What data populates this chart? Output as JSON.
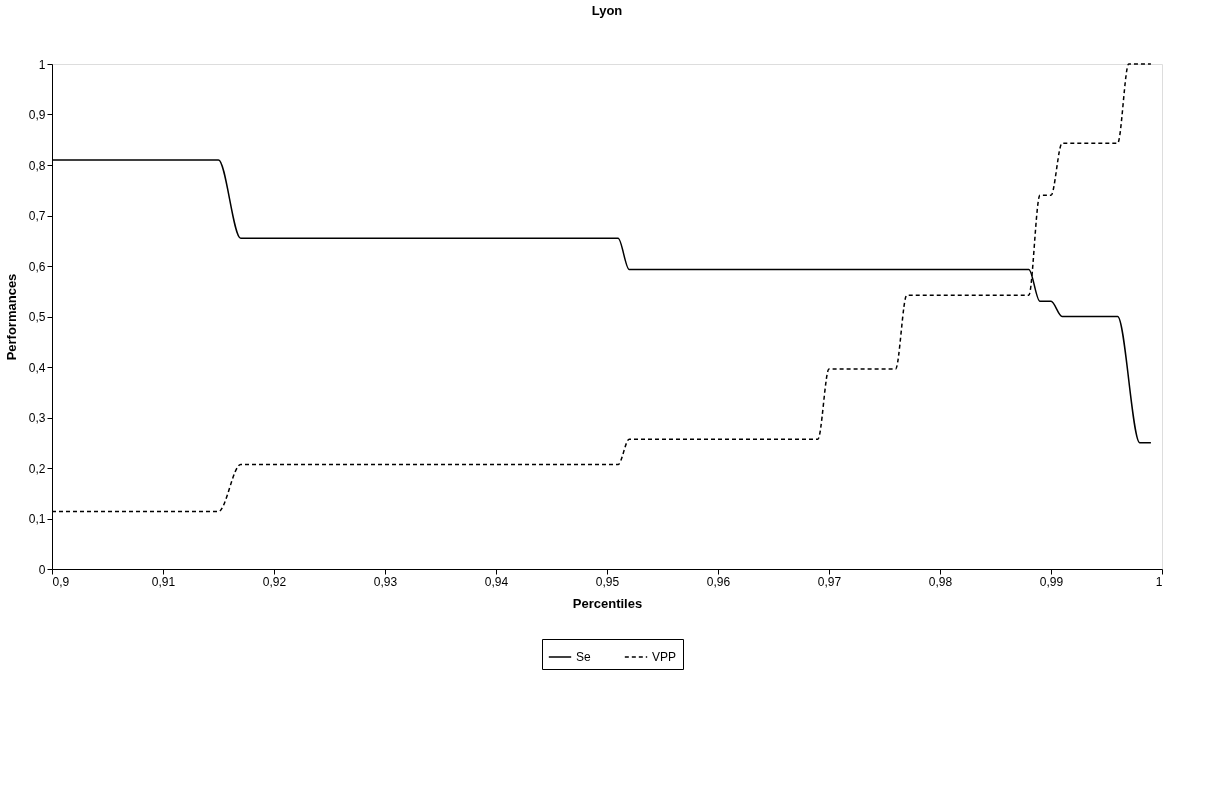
{
  "chart_data": {
    "type": "line",
    "title": "Lyon",
    "xlabel": "Percentiles",
    "ylabel": "Performances",
    "xlim": [
      0.9,
      1.0
    ],
    "ylim": [
      0,
      1
    ],
    "xticks": [
      {
        "value": 0.9,
        "label": "0,9"
      },
      {
        "value": 0.91,
        "label": "0,91"
      },
      {
        "value": 0.92,
        "label": "0,92"
      },
      {
        "value": 0.93,
        "label": "0,93"
      },
      {
        "value": 0.94,
        "label": "0,94"
      },
      {
        "value": 0.95,
        "label": "0,95"
      },
      {
        "value": 0.96,
        "label": "0,96"
      },
      {
        "value": 0.97,
        "label": "0,97"
      },
      {
        "value": 0.98,
        "label": "0,98"
      },
      {
        "value": 0.99,
        "label": "0,99"
      },
      1
    ],
    "yticks": [
      0,
      {
        "value": 0.1,
        "label": "0,1"
      },
      {
        "value": 0.2,
        "label": "0,2"
      },
      {
        "value": 0.3,
        "label": "0,3"
      },
      {
        "value": 0.4,
        "label": "0,4"
      },
      {
        "value": 0.5,
        "label": "0,5"
      },
      {
        "value": 0.6,
        "label": "0,6"
      },
      {
        "value": 0.7,
        "label": "0,7"
      },
      {
        "value": 0.8,
        "label": "0,8"
      },
      {
        "value": 0.9,
        "label": "0,9"
      },
      1
    ],
    "grid": false,
    "legend": "bottom",
    "marker": "none",
    "series": [
      {
        "name": "Se",
        "color": "#000000",
        "line_style": "solid",
        "x": [
          0.9,
          0.915,
          0.917,
          0.951,
          0.952,
          0.988,
          0.989,
          0.99,
          0.991,
          0.996,
          0.998,
          0.999
        ],
        "values": [
          0.81,
          0.81,
          0.655,
          0.655,
          0.593,
          0.593,
          0.53,
          0.53,
          0.5,
          0.5,
          0.25,
          0.25
        ]
      },
      {
        "name": "VPP",
        "color": "#000000",
        "line_style": "dashed",
        "x": [
          0.9,
          0.915,
          0.917,
          0.951,
          0.952,
          0.969,
          0.97,
          0.976,
          0.977,
          0.988,
          0.989,
          0.99,
          0.991,
          0.996,
          0.997,
          0.999
        ],
        "values": [
          0.114,
          0.114,
          0.207,
          0.207,
          0.257,
          0.257,
          0.396,
          0.396,
          0.542,
          0.542,
          0.74,
          0.74,
          0.843,
          0.843,
          1.0,
          1.0
        ]
      }
    ]
  }
}
